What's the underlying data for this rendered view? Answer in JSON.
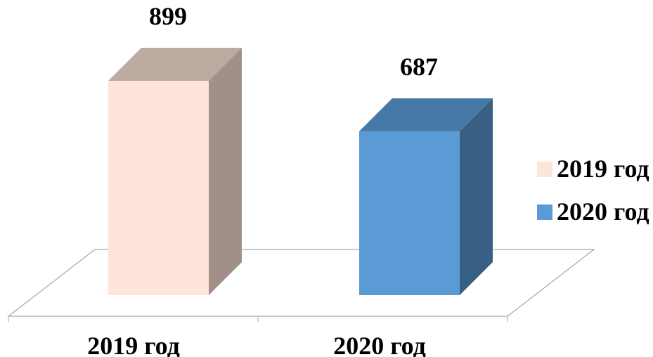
{
  "chart_data": {
    "type": "bar",
    "style": "3d-column",
    "title": "",
    "xlabel": "",
    "ylabel": "",
    "categories": [
      "2019 год",
      "2020 год"
    ],
    "series": [
      {
        "values": [
          899,
          687
        ],
        "colors": [
          "#fde5d9",
          "#5b9bd5"
        ]
      }
    ],
    "data_labels": [
      "899",
      "687"
    ],
    "legend": {
      "placement": "right",
      "entries": [
        {
          "label": "2019 год",
          "color": "#fde5d9"
        },
        {
          "label": "2020 год",
          "color": "#5b9bd5"
        }
      ]
    },
    "grid": false,
    "ylim": [
      0,
      899
    ]
  }
}
